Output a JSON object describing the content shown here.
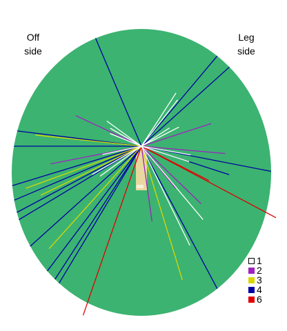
{
  "labels": {
    "off_side": [
      "Off",
      "side"
    ],
    "leg_side": [
      "Leg",
      "side"
    ]
  },
  "colors": {
    "field": "#3cb371",
    "pitch": "#e8d8a0",
    "1": "#ffffff",
    "2": "#a020c0",
    "3": "#d8d800",
    "4": "#0000a0",
    "6": "#e00000"
  },
  "chart_data": {
    "type": "wagon-wheel",
    "legend": [
      {
        "runs": "1",
        "color": "#ffffff"
      },
      {
        "runs": "2",
        "color": "#a020c0"
      },
      {
        "runs": "3",
        "color": "#d8d800"
      },
      {
        "runs": "4",
        "color": "#0000a0"
      },
      {
        "runs": "6",
        "color": "#e00000"
      }
    ],
    "shots": [
      {
        "runs": 4,
        "angle": -23,
        "length": 1.0
      },
      {
        "runs": 4,
        "angle": 40,
        "length": 1.0
      },
      {
        "runs": 4,
        "angle": 48,
        "length": 1.0
      },
      {
        "runs": 4,
        "angle": -83,
        "length": 1.0
      },
      {
        "runs": 4,
        "angle": -90,
        "length": 1.0
      },
      {
        "runs": 4,
        "angle": -107,
        "length": 1.0
      },
      {
        "runs": 4,
        "angle": -113,
        "length": 1.0
      },
      {
        "runs": 4,
        "angle": -118,
        "length": 1.0
      },
      {
        "runs": 4,
        "angle": -121,
        "length": 1.0
      },
      {
        "runs": 4,
        "angle": -132,
        "length": 1.0
      },
      {
        "runs": 4,
        "angle": -143,
        "length": 1.0
      },
      {
        "runs": 4,
        "angle": -147,
        "length": 1.0
      },
      {
        "runs": 4,
        "angle": -149,
        "length": 1.0
      },
      {
        "runs": 4,
        "angle": 152,
        "length": 1.0
      },
      {
        "runs": 4,
        "angle": 101,
        "length": 1.0
      },
      {
        "runs": 4,
        "angle": 108,
        "length": 0.68
      },
      {
        "runs": 6,
        "angle": 118,
        "length": 1.0
      },
      {
        "runs": 6,
        "angle": -161,
        "length": 1.0
      },
      {
        "runs": 6,
        "angle": 117,
        "length": 0.5
      },
      {
        "runs": 3,
        "angle": -84,
        "length": 0.85
      },
      {
        "runs": 3,
        "angle": -110,
        "length": 0.9
      },
      {
        "runs": 3,
        "angle": -116,
        "length": 0.8
      },
      {
        "runs": 3,
        "angle": -138,
        "length": 0.9
      },
      {
        "runs": 3,
        "angle": 163,
        "length": 0.84
      },
      {
        "runs": 2,
        "angle": -65,
        "length": 0.6
      },
      {
        "runs": 2,
        "angle": 72,
        "length": 0.6
      },
      {
        "runs": 2,
        "angle": 95,
        "length": 0.65
      },
      {
        "runs": 2,
        "angle": 134,
        "length": 0.55
      },
      {
        "runs": 2,
        "angle": 141,
        "length": 0.35
      },
      {
        "runs": 2,
        "angle": -101,
        "length": 0.7
      },
      {
        "runs": 2,
        "angle": 172,
        "length": 0.45
      },
      {
        "runs": 1,
        "angle": 33,
        "length": 0.54
      },
      {
        "runs": 1,
        "angle": 38,
        "length": 0.5
      },
      {
        "runs": 1,
        "angle": 57,
        "length": 0.28
      },
      {
        "runs": 1,
        "angle": 63,
        "length": 0.35
      },
      {
        "runs": 1,
        "angle": -54,
        "length": 0.36
      },
      {
        "runs": 1,
        "angle": -60,
        "length": 0.3
      },
      {
        "runs": 1,
        "angle": -68,
        "length": 0.28
      },
      {
        "runs": 1,
        "angle": 100,
        "length": 0.38
      },
      {
        "runs": 1,
        "angle": 108,
        "length": 0.37
      },
      {
        "runs": 1,
        "angle": 140,
        "length": 0.62
      },
      {
        "runs": 1,
        "angle": 154,
        "length": 0.68
      },
      {
        "runs": 1,
        "angle": -126,
        "length": 0.35
      },
      {
        "runs": 1,
        "angle": -120,
        "length": 0.4
      },
      {
        "runs": 1,
        "angle": -102,
        "length": 0.3
      }
    ]
  }
}
